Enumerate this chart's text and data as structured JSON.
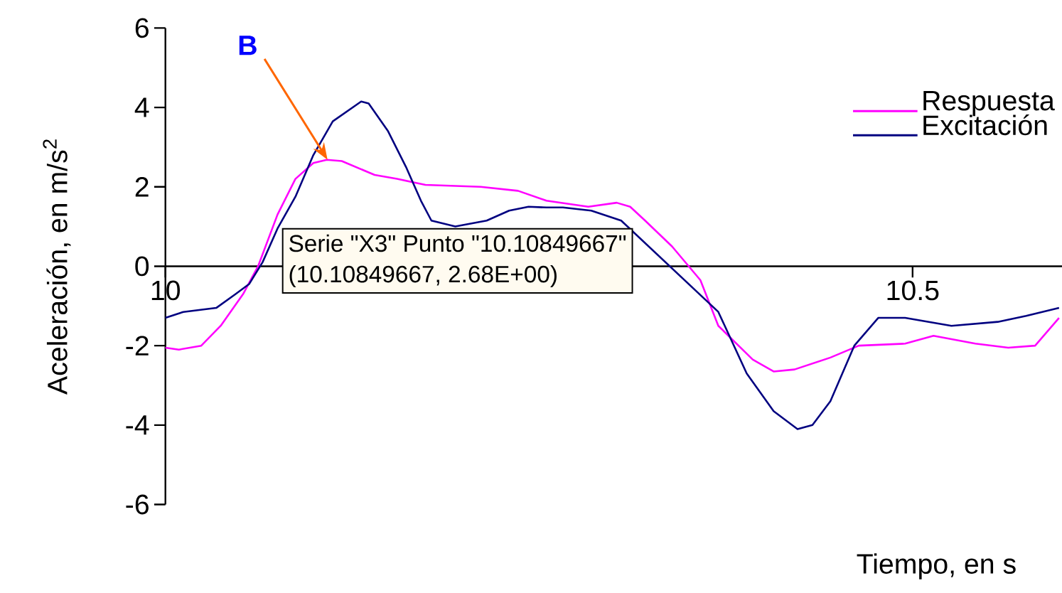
{
  "chart_data": {
    "type": "line",
    "xlabel": "Tiempo, en s",
    "ylabel": "Aceleración, en m/s$^{2}$",
    "xlim": [
      10,
      10.6
    ],
    "xticks": [
      10,
      10.5
    ],
    "ylim": [
      -6,
      6
    ],
    "yticks": [
      -6,
      -4,
      -2,
      0,
      2,
      4,
      6
    ],
    "legend": "top right",
    "line_style": "solid",
    "series": [
      {
        "name": "Respuesta",
        "color": "#ff00ff",
        "x": [
          10.0,
          10.009,
          10.024,
          10.037,
          10.052,
          10.062,
          10.075,
          10.087,
          10.099,
          10.108,
          10.118,
          10.14,
          10.155,
          10.174,
          10.211,
          10.236,
          10.255,
          10.283,
          10.302,
          10.311,
          10.321,
          10.339,
          10.358,
          10.37,
          10.393,
          10.407,
          10.421,
          10.445,
          10.464,
          10.495,
          10.514,
          10.542,
          10.564,
          10.582,
          10.598
        ],
        "values": [
          -2.05,
          -2.1,
          -2.0,
          -1.5,
          -0.7,
          0.0,
          1.3,
          2.2,
          2.6,
          2.68,
          2.65,
          2.3,
          2.2,
          2.05,
          2.0,
          1.9,
          1.65,
          1.5,
          1.6,
          1.5,
          1.15,
          0.5,
          -0.35,
          -1.5,
          -2.35,
          -2.65,
          -2.6,
          -2.3,
          -2.0,
          -1.95,
          -1.75,
          -1.95,
          -2.05,
          -2.0,
          -1.3
        ]
      },
      {
        "name": "Excitación",
        "color": "#000080",
        "x": [
          10.0,
          10.012,
          10.034,
          10.047,
          10.056,
          10.065,
          10.075,
          10.087,
          10.099,
          10.112,
          10.131,
          10.136,
          10.149,
          10.161,
          10.171,
          10.178,
          10.194,
          10.215,
          10.23,
          10.243,
          10.255,
          10.266,
          10.285,
          10.305,
          10.37,
          10.389,
          10.407,
          10.423,
          10.433,
          10.445,
          10.461,
          10.477,
          10.495,
          10.526,
          10.557,
          10.576,
          10.598
        ],
        "values": [
          -1.3,
          -1.15,
          -1.05,
          -0.7,
          -0.45,
          0.1,
          0.95,
          1.75,
          2.8,
          3.65,
          4.15,
          4.1,
          3.4,
          2.5,
          1.65,
          1.15,
          1.0,
          1.15,
          1.4,
          1.5,
          1.48,
          1.48,
          1.4,
          1.15,
          -1.15,
          -2.7,
          -3.65,
          -4.1,
          -4.0,
          -3.4,
          -2.0,
          -1.3,
          -1.3,
          -1.5,
          -1.4,
          -1.25,
          -1.05
        ]
      }
    ],
    "annotations": [
      {
        "text": "B",
        "x": 10.10849667,
        "y": 2.68
      },
      "Serie \"X3\" Punto \"10.10849667\"",
      "(10.10849667, 2.68E+00)"
    ]
  }
}
